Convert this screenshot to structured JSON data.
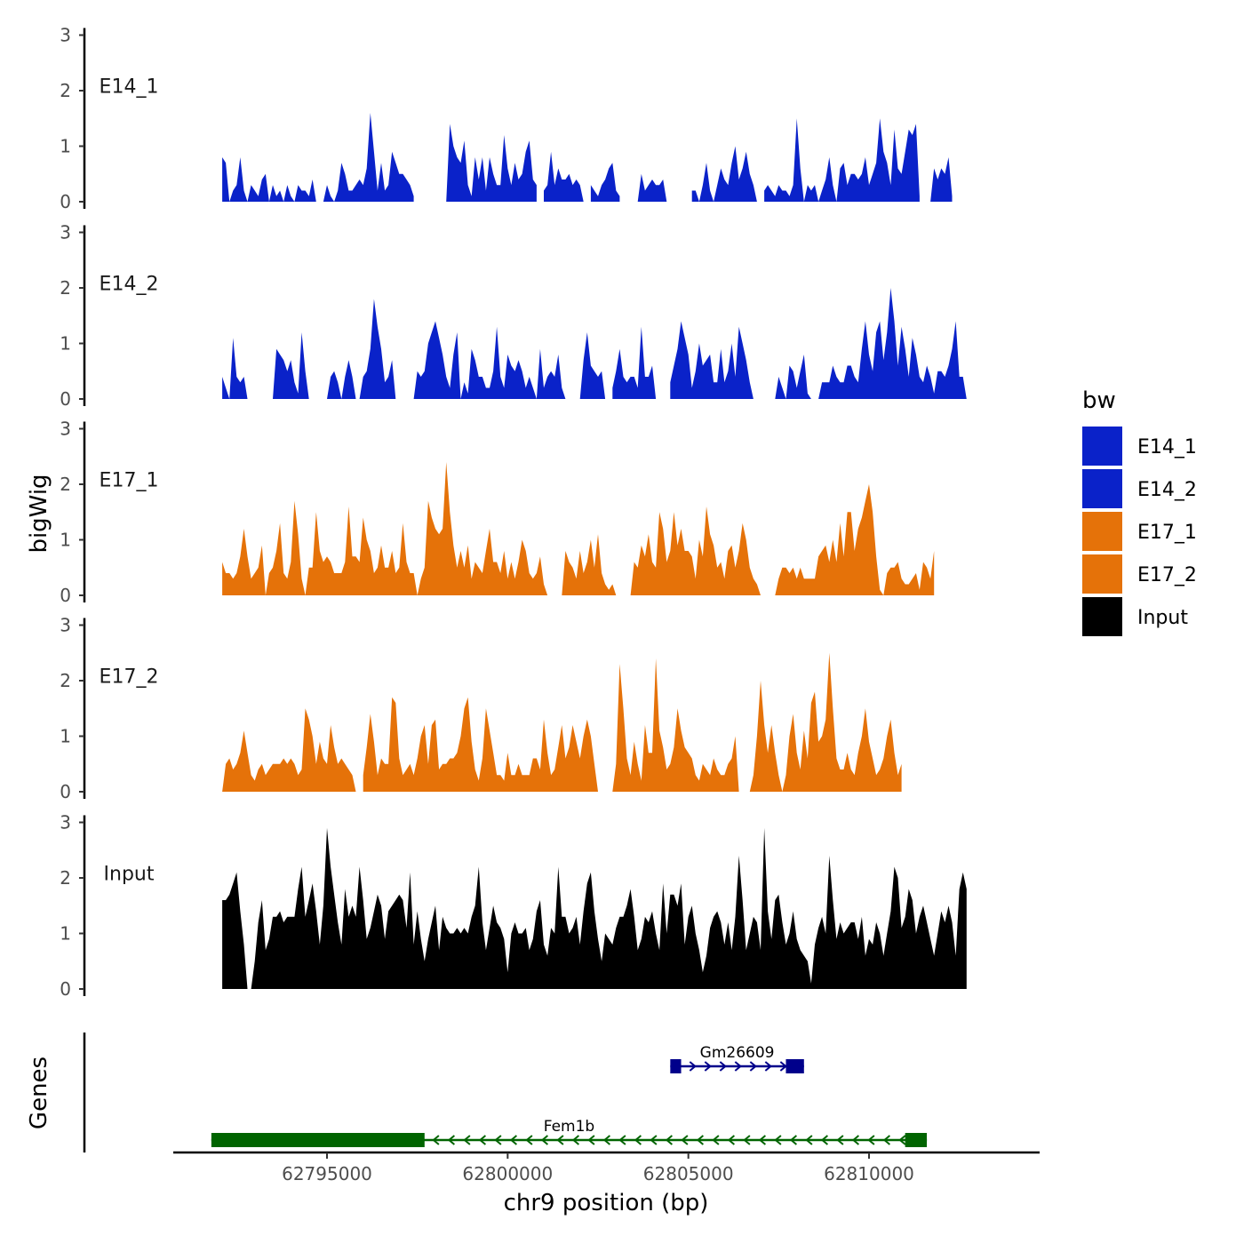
{
  "chart_data": {
    "type": "area",
    "title": "",
    "ylabel": "bigWig",
    "xlabel": "chr9 position (bp)",
    "gene_panel_label": "Genes",
    "xlim": [
      62791000,
      62814800
    ],
    "ylim": [
      0,
      3
    ],
    "y_ticks": [
      "0",
      "1",
      "2",
      "3"
    ],
    "x_ticks": [
      {
        "value": 62795000,
        "label": "62795000"
      },
      {
        "value": 62800000,
        "label": "62800000"
      },
      {
        "value": 62805000,
        "label": "62805000"
      },
      {
        "value": 62810000,
        "label": "62810000"
      }
    ],
    "legend": {
      "title": "bw",
      "position": "right",
      "items": [
        {
          "label": "E14_1",
          "color": "#0a22c9"
        },
        {
          "label": "E14_2",
          "color": "#0a22c9"
        },
        {
          "label": "E17_1",
          "color": "#e57209"
        },
        {
          "label": "E17_2",
          "color": "#e57209"
        },
        {
          "label": "Input",
          "color": "#000000"
        }
      ]
    },
    "series": [
      {
        "name": "E14_1",
        "color": "#0a22c9",
        "x_start": 62792100,
        "step": 100,
        "values": [
          0.8,
          0.7,
          0.0,
          0.2,
          0.3,
          0.8,
          0.2,
          0.0,
          0.3,
          0.2,
          0.1,
          0.4,
          0.5,
          0.0,
          0.3,
          0.1,
          0.2,
          0.0,
          0.3,
          0.1,
          0.0,
          0.3,
          0.2,
          0.2,
          0.1,
          0.4,
          0.0,
          null,
          0.0,
          0.3,
          0.1,
          0.0,
          0.2,
          0.7,
          0.5,
          0.2,
          0.2,
          0.3,
          0.4,
          0.3,
          0.6,
          1.6,
          0.9,
          0.2,
          0.7,
          0.2,
          0.3,
          0.9,
          0.7,
          0.5,
          0.5,
          0.4,
          0.3,
          0.1,
          null,
          null,
          null,
          null,
          null,
          null,
          null,
          null,
          0.0,
          1.4,
          1.0,
          0.8,
          0.7,
          1.1,
          0.3,
          0.1,
          0.8,
          0.4,
          0.8,
          0.2,
          0.8,
          0.5,
          0.3,
          0.3,
          1.2,
          0.6,
          0.3,
          0.7,
          0.4,
          0.5,
          0.9,
          1.1,
          0.4,
          0.3,
          null,
          0.2,
          0.3,
          0.9,
          0.3,
          0.6,
          0.4,
          0.4,
          0.5,
          0.3,
          0.4,
          0.3,
          0.0,
          null,
          0.3,
          0.2,
          0.1,
          0.3,
          0.4,
          0.6,
          0.7,
          0.2,
          0.1,
          null,
          null,
          null,
          null,
          0.0,
          0.5,
          0.2,
          0.3,
          0.4,
          0.3,
          0.3,
          0.4,
          0.0,
          null,
          null,
          null,
          null,
          null,
          null,
          0.2,
          0.2,
          0.0,
          0.3,
          0.7,
          0.2,
          0.0,
          0.3,
          0.6,
          0.4,
          0.3,
          0.7,
          1.0,
          0.4,
          0.6,
          0.9,
          0.5,
          0.3,
          0.0,
          null,
          0.2,
          0.3,
          0.2,
          0.1,
          0.3,
          0.2,
          0.2,
          0.1,
          0.3,
          1.5,
          0.6,
          0.0,
          0.3,
          0.2,
          0.3,
          0.0,
          0.2,
          0.4,
          0.8,
          0.3,
          0.0,
          0.6,
          0.7,
          0.3,
          0.5,
          0.5,
          0.4,
          0.5,
          0.8,
          0.3,
          0.5,
          0.7,
          1.5,
          0.9,
          0.7,
          0.3,
          1.3,
          0.6,
          0.5,
          0.9,
          1.3,
          1.2,
          1.4,
          0.1,
          null,
          null,
          0.0,
          0.6,
          0.4,
          0.6,
          0.5,
          0.8,
          0.1
        ]
      },
      {
        "name": "E14_2",
        "color": "#0a22c9",
        "x_start": 62792100,
        "step": 100,
        "values": [
          0.4,
          0.2,
          0.0,
          1.1,
          0.4,
          0.3,
          0.4,
          0.0,
          null,
          null,
          null,
          null,
          null,
          null,
          0.0,
          0.9,
          0.8,
          0.7,
          0.5,
          0.7,
          0.3,
          0.1,
          1.2,
          0.5,
          0.0,
          null,
          null,
          null,
          null,
          0.0,
          0.4,
          0.5,
          0.3,
          0.0,
          0.4,
          0.7,
          0.4,
          0.0,
          0.0,
          0.4,
          0.5,
          0.9,
          1.8,
          1.3,
          0.9,
          0.3,
          0.4,
          0.7,
          0.0,
          null,
          null,
          null,
          null,
          0.0,
          0.5,
          0.4,
          0.5,
          1.0,
          1.2,
          1.4,
          1.1,
          0.8,
          0.4,
          0.2,
          0.8,
          1.2,
          0.0,
          0.3,
          0.1,
          0.9,
          0.7,
          0.4,
          0.4,
          0.2,
          0.2,
          0.5,
          1.3,
          0.4,
          0.2,
          0.8,
          0.6,
          0.5,
          0.7,
          0.5,
          0.2,
          0.4,
          0.2,
          0.0,
          0.9,
          0.2,
          0.4,
          0.5,
          0.4,
          0.8,
          0.2,
          0.0,
          null,
          null,
          null,
          0.0,
          0.7,
          1.2,
          0.6,
          0.5,
          0.4,
          0.5,
          0.0,
          null,
          0.2,
          0.5,
          0.9,
          0.4,
          0.3,
          0.4,
          0.4,
          0.2,
          1.3,
          0.4,
          0.4,
          0.6,
          0.0,
          null,
          null,
          null,
          0.3,
          0.6,
          0.9,
          1.4,
          1.1,
          0.8,
          0.2,
          0.5,
          1.0,
          0.6,
          0.7,
          0.8,
          0.3,
          0.3,
          0.9,
          0.3,
          0.5,
          1.0,
          0.4,
          1.3,
          1.0,
          0.7,
          0.3,
          0.0,
          null,
          null,
          null,
          null,
          null,
          0.0,
          0.4,
          0.2,
          0.0,
          0.6,
          0.5,
          0.2,
          0.5,
          0.8,
          0.1,
          0.0,
          null,
          0.0,
          0.3,
          0.3,
          0.3,
          0.6,
          0.4,
          0.3,
          0.3,
          0.6,
          0.6,
          0.4,
          0.3,
          0.9,
          1.4,
          0.8,
          0.5,
          1.2,
          1.4,
          0.7,
          1.2,
          2.0,
          1.4,
          0.6,
          1.3,
          0.9,
          0.4,
          1.1,
          0.8,
          0.4,
          0.3,
          0.6,
          0.4,
          0.1,
          0.5,
          0.5,
          0.4,
          0.6,
          0.9,
          1.4,
          0.4,
          0.4,
          0.0
        ]
      },
      {
        "name": "E17_1",
        "color": "#e57209",
        "x_start": 62792100,
        "step": 100,
        "values": [
          0.6,
          0.4,
          0.4,
          0.3,
          0.4,
          0.7,
          1.2,
          0.7,
          0.3,
          0.4,
          0.5,
          0.9,
          0.0,
          0.4,
          0.5,
          0.8,
          1.3,
          0.4,
          0.3,
          0.6,
          1.7,
          1.1,
          0.3,
          0.0,
          0.5,
          0.5,
          1.5,
          0.8,
          0.6,
          0.7,
          0.6,
          0.4,
          0.4,
          0.4,
          0.6,
          1.6,
          0.7,
          0.7,
          0.6,
          1.4,
          1.0,
          0.8,
          0.4,
          0.5,
          0.9,
          0.5,
          0.5,
          0.8,
          0.4,
          0.5,
          1.3,
          0.6,
          0.4,
          0.4,
          0.0,
          0.3,
          0.5,
          1.7,
          1.4,
          1.2,
          1.1,
          1.2,
          2.4,
          1.5,
          0.9,
          0.5,
          0.8,
          0.5,
          0.9,
          0.3,
          0.6,
          0.5,
          0.4,
          0.8,
          1.2,
          0.6,
          0.6,
          0.4,
          0.8,
          0.3,
          0.6,
          0.3,
          0.6,
          1.0,
          0.8,
          0.4,
          0.3,
          0.4,
          0.7,
          0.2,
          0.0,
          null,
          null,
          null,
          0.0,
          0.8,
          0.6,
          0.5,
          0.3,
          0.8,
          0.4,
          0.6,
          1.0,
          0.5,
          1.1,
          0.4,
          0.2,
          0.1,
          0.2,
          0.0,
          null,
          null,
          null,
          0.0,
          0.6,
          0.5,
          0.9,
          0.7,
          1.1,
          0.6,
          0.5,
          1.5,
          1.2,
          0.6,
          0.8,
          1.5,
          0.9,
          1.2,
          0.8,
          0.8,
          0.7,
          0.3,
          1.0,
          0.7,
          1.6,
          1.1,
          0.9,
          0.5,
          0.6,
          0.3,
          0.8,
          0.9,
          0.5,
          0.8,
          1.3,
          1.0,
          0.5,
          0.3,
          0.2,
          0.0,
          null,
          null,
          null,
          0.0,
          0.3,
          0.5,
          0.5,
          0.4,
          0.5,
          0.3,
          0.5,
          0.3,
          0.3,
          0.3,
          0.3,
          0.7,
          0.8,
          0.9,
          0.6,
          1.0,
          0.6,
          1.3,
          0.7,
          1.5,
          1.5,
          0.8,
          1.2,
          1.4,
          1.7,
          2.0,
          1.5,
          0.7,
          0.1,
          0.0,
          0.4,
          0.5,
          0.5,
          0.6,
          0.3,
          0.2,
          0.2,
          0.3,
          0.4,
          0.1,
          0.6,
          0.5,
          0.3,
          0.8
        ]
      },
      {
        "name": "E17_2",
        "color": "#e57209",
        "x_start": 62792100,
        "step": 100,
        "values": [
          0.0,
          0.5,
          0.6,
          0.4,
          0.5,
          0.7,
          1.1,
          0.7,
          0.3,
          0.2,
          0.4,
          0.5,
          0.3,
          0.4,
          0.5,
          0.5,
          0.5,
          0.6,
          0.5,
          0.6,
          0.5,
          0.3,
          0.4,
          1.5,
          1.3,
          1.0,
          0.5,
          0.9,
          0.6,
          0.5,
          1.2,
          0.8,
          0.5,
          0.6,
          0.5,
          0.4,
          0.3,
          0.0,
          null,
          0.3,
          0.8,
          1.4,
          0.9,
          0.3,
          0.6,
          0.5,
          0.5,
          1.7,
          1.6,
          0.6,
          0.3,
          0.4,
          0.5,
          0.3,
          0.6,
          1.0,
          1.2,
          0.5,
          1.2,
          1.3,
          0.4,
          0.5,
          0.5,
          0.6,
          0.6,
          0.7,
          1.0,
          1.5,
          1.7,
          0.9,
          0.4,
          0.2,
          0.6,
          1.5,
          1.1,
          0.7,
          0.3,
          0.3,
          0.2,
          0.7,
          0.3,
          0.3,
          0.5,
          0.3,
          0.3,
          0.3,
          0.6,
          0.6,
          0.4,
          1.3,
          0.7,
          0.3,
          0.4,
          0.8,
          1.2,
          0.6,
          0.8,
          1.2,
          0.9,
          0.6,
          1.0,
          1.3,
          1.0,
          0.5,
          0.0,
          null,
          null,
          null,
          0.0,
          0.5,
          2.3,
          1.5,
          0.6,
          0.3,
          0.9,
          0.5,
          0.2,
          1.2,
          0.7,
          0.7,
          2.4,
          1.1,
          0.8,
          0.4,
          0.5,
          0.8,
          1.5,
          1.1,
          0.8,
          0.7,
          0.6,
          0.3,
          0.2,
          0.5,
          0.4,
          0.3,
          0.6,
          0.4,
          0.3,
          0.3,
          0.5,
          0.6,
          1.0,
          0.0,
          null,
          null,
          0.0,
          0.3,
          1.0,
          2.0,
          1.2,
          0.7,
          1.2,
          0.7,
          0.3,
          0.0,
          0.3,
          1.0,
          1.4,
          0.7,
          0.4,
          1.1,
          0.6,
          1.6,
          1.8,
          0.9,
          1.0,
          1.3,
          2.5,
          1.5,
          0.6,
          0.4,
          0.4,
          0.7,
          0.4,
          0.3,
          0.7,
          1.0,
          1.5,
          0.9,
          0.6,
          0.3,
          0.4,
          0.6,
          1.0,
          1.3,
          0.7,
          0.3,
          0.5
        ]
      },
      {
        "name": "Input",
        "color": "#000000",
        "x_start": 62792100,
        "step": 100,
        "values": [
          1.6,
          1.6,
          1.7,
          1.9,
          2.1,
          1.4,
          0.8,
          0.0,
          0.0,
          0.5,
          1.2,
          1.6,
          0.7,
          0.9,
          1.3,
          1.3,
          1.4,
          1.2,
          1.3,
          1.3,
          1.3,
          1.8,
          2.2,
          1.3,
          1.6,
          1.9,
          1.4,
          0.8,
          1.5,
          2.9,
          2.2,
          1.7,
          1.2,
          0.8,
          1.8,
          1.3,
          1.5,
          1.3,
          2.2,
          1.6,
          0.9,
          1.1,
          1.4,
          1.7,
          1.5,
          0.9,
          1.4,
          1.5,
          1.6,
          1.7,
          1.6,
          1.1,
          2.1,
          0.8,
          1.4,
          0.9,
          0.5,
          0.9,
          1.2,
          1.5,
          0.7,
          1.3,
          1.1,
          1.0,
          1.0,
          1.1,
          1.0,
          1.1,
          1.0,
          1.3,
          1.5,
          2.2,
          1.2,
          0.7,
          1.1,
          1.5,
          1.2,
          1.1,
          0.9,
          0.3,
          1.0,
          1.2,
          1.0,
          1.0,
          1.1,
          0.7,
          0.9,
          1.4,
          1.6,
          0.8,
          0.6,
          1.1,
          1.0,
          2.2,
          1.3,
          1.3,
          1.0,
          1.1,
          1.3,
          0.8,
          1.4,
          1.9,
          2.1,
          1.4,
          0.9,
          0.5,
          1.0,
          0.9,
          0.8,
          1.1,
          1.3,
          1.3,
          1.5,
          1.8,
          1.3,
          0.7,
          0.9,
          1.3,
          1.2,
          1.4,
          1.0,
          0.7,
          1.9,
          1.0,
          1.7,
          1.7,
          1.5,
          1.9,
          0.8,
          1.3,
          1.5,
          1.0,
          0.7,
          0.3,
          0.6,
          1.1,
          1.3,
          1.4,
          1.2,
          0.8,
          1.2,
          0.7,
          1.3,
          2.4,
          1.6,
          0.7,
          1.0,
          1.3,
          1.2,
          0.7,
          2.9,
          1.4,
          0.9,
          1.6,
          1.7,
          1.2,
          0.8,
          1.0,
          1.4,
          0.9,
          0.7,
          0.6,
          0.5,
          0.1,
          0.8,
          1.1,
          1.3,
          1.0,
          2.4,
          1.6,
          0.9,
          1.2,
          1.0,
          1.1,
          1.2,
          1.2,
          0.9,
          1.3,
          0.6,
          0.9,
          0.8,
          1.2,
          1.0,
          0.6,
          1.0,
          1.4,
          2.2,
          2.0,
          1.1,
          1.3,
          1.8,
          1.6,
          1.0,
          1.3,
          1.5,
          1.2,
          0.9,
          0.6,
          1.0,
          1.4,
          1.2,
          1.5,
          1.2,
          0.6,
          1.8,
          2.1,
          1.8
        ]
      }
    ],
    "genes": [
      {
        "name": "Gm26609",
        "strand": "+",
        "color": "#00008b",
        "start": 62804500,
        "end": 62808200,
        "exons": [
          [
            62804500,
            62804800
          ],
          [
            62807700,
            62808200
          ]
        ],
        "row": 1
      },
      {
        "name": "Fem1b",
        "strand": "-",
        "color": "#006400",
        "start": 62791800,
        "end": 62811600,
        "exons": [
          [
            62791800,
            62797700
          ],
          [
            62811000,
            62811600
          ]
        ],
        "row": 2
      }
    ]
  }
}
